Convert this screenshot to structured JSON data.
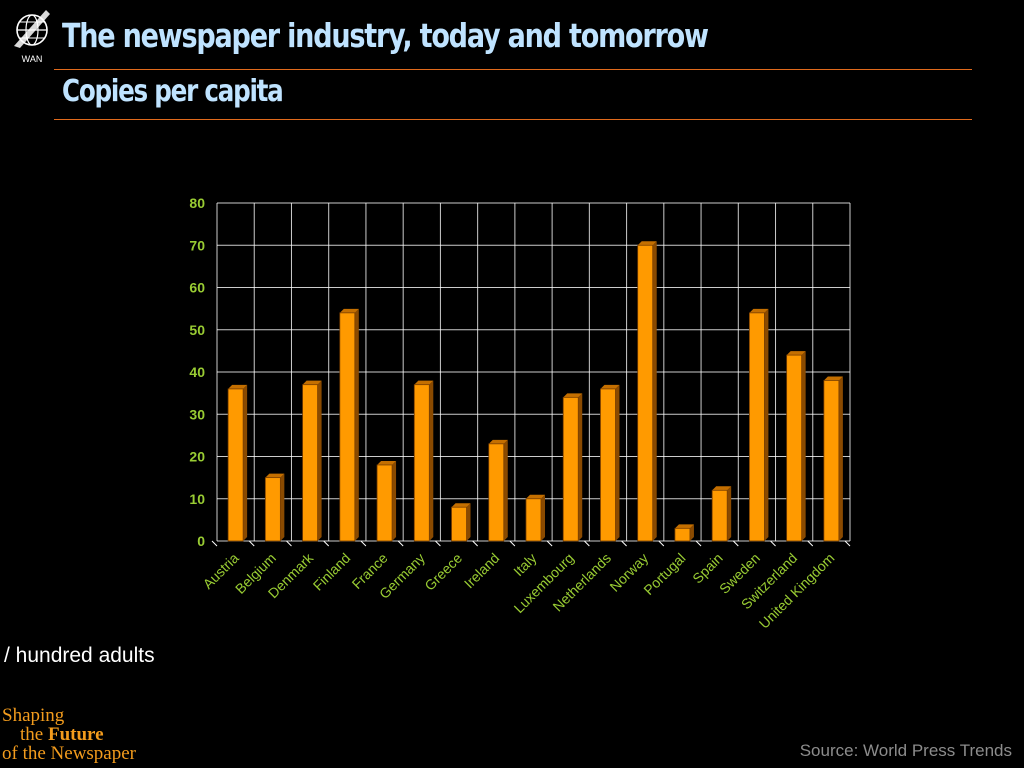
{
  "header": {
    "title": "The newspaper industry, today and tomorrow",
    "subtitle": "Copies per capita",
    "logo_text": "WAN"
  },
  "unit_label": "/ hundred adults",
  "source": "Source: World Press Trends",
  "tagline": {
    "line1": "Shaping",
    "line2_prefix": "the",
    "line2_emph": "Future",
    "line3": "of the Newspaper"
  },
  "colors": {
    "bar": "#ff9a00",
    "bar_dark": "#8a4a00",
    "axis_text": "#99cc33",
    "grid": "#ffffff",
    "title": "#bfe3ff",
    "accent": "#e06a1c"
  },
  "chart_data": {
    "type": "bar",
    "categories": [
      "Austria",
      "Belgium",
      "Denmark",
      "Finland",
      "France",
      "Germany",
      "Greece",
      "Ireland",
      "Italy",
      "Luxembourg",
      "Netherlands",
      "Norway",
      "Portugal",
      "Spain",
      "Sweden",
      "Switzerland",
      "United Kingdom"
    ],
    "values": [
      36,
      15,
      37,
      54,
      18,
      37,
      8,
      23,
      10,
      34,
      36,
      70,
      3,
      12,
      54,
      44,
      38
    ],
    "ylim": [
      0,
      80
    ],
    "yticks": [
      0,
      10,
      20,
      30,
      40,
      50,
      60,
      70,
      80
    ],
    "grid": true
  }
}
